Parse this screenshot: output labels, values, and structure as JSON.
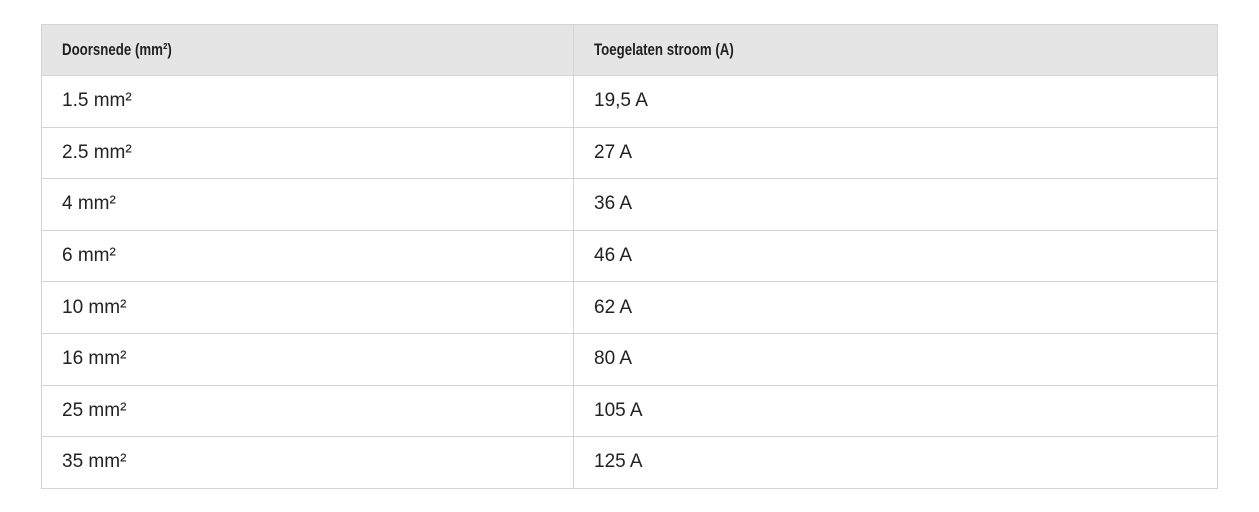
{
  "table": {
    "header": [
      "Doorsnede (mm²)",
      "Toegelaten stroom (A)"
    ],
    "rows": [
      [
        "1.5 mm²",
        "19,5 A"
      ],
      [
        "2.5 mm²",
        "27 A"
      ],
      [
        "4 mm²",
        "36 A"
      ],
      [
        "6 mm²",
        "46 A"
      ],
      [
        "10 mm²",
        "62 A"
      ],
      [
        "16 mm²",
        "80 A"
      ],
      [
        "25 mm²",
        "105 A"
      ],
      [
        "35 mm²",
        "125 A"
      ]
    ]
  }
}
